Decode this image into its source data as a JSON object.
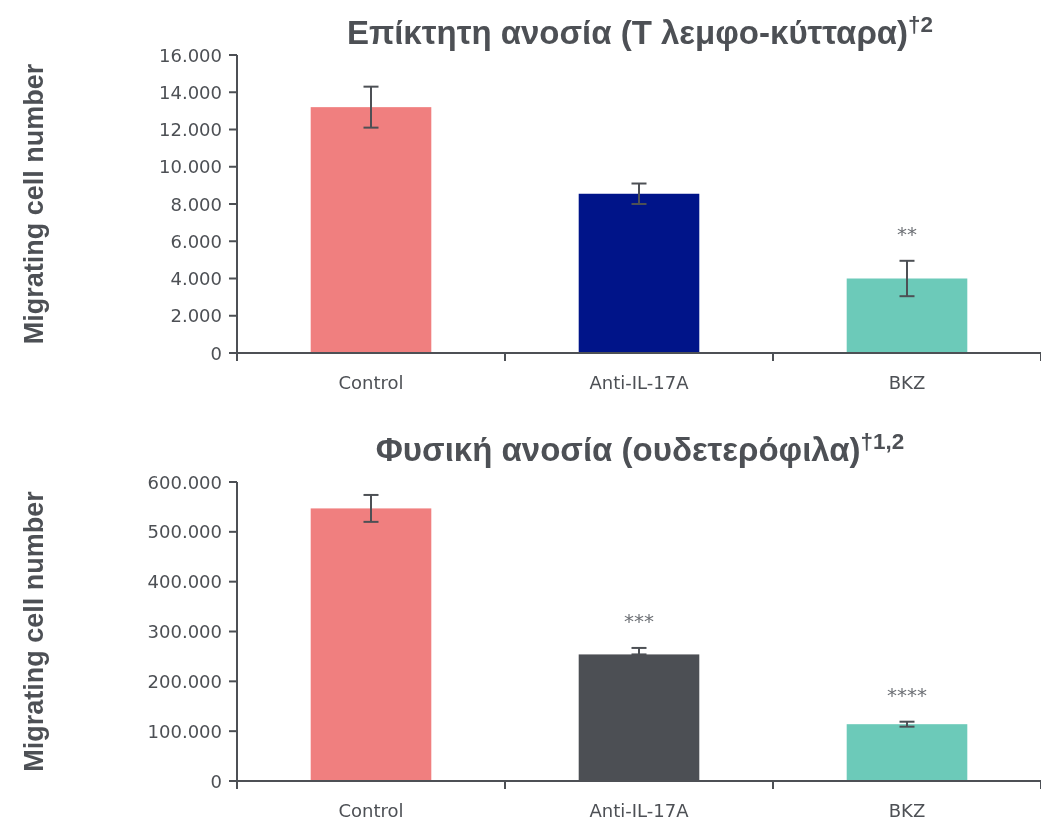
{
  "chart_data": [
    {
      "type": "bar",
      "title": "Επίκτητη ανοσία (Τ λεμφο-κύτταρα)$^{†2}$",
      "ylabel": "Migrating cell number",
      "categories": [
        "Control",
        "Anti-IL-17A",
        "BKZ"
      ],
      "values": [
        13200,
        8550,
        4000
      ],
      "colors": [
        "#f07f7f",
        "#001489",
        "#6ccab9"
      ],
      "errors": [
        1100,
        550,
        950
      ],
      "ylim": [
        0,
        16000
      ],
      "yticks": [
        0,
        {
          "value": 2000,
          "label": "2.000"
        },
        {
          "value": 4000,
          "label": "4.000"
        },
        {
          "value": 6000,
          "label": "6.000"
        },
        {
          "value": 8000,
          "label": "8.000"
        },
        {
          "value": 10000,
          "label": "10.000"
        },
        {
          "value": 12000,
          "label": "12.000"
        },
        {
          "value": 14000,
          "label": "14.000"
        },
        {
          "value": 16000,
          "label": "16.000"
        }
      ],
      "annotations": [
        "**"
      ]
    },
    {
      "type": "bar",
      "title": "Φυσική ανοσία (ουδετερόφιλα)$^{†1,2}$",
      "ylabel": "Migrating cell number",
      "categories": [
        "Control",
        "Anti-IL-17A",
        "BKZ"
      ],
      "values": [
        547000,
        254000,
        114000
      ],
      "colors": [
        "#f07f7f",
        "#4c4f54",
        "#6ccab9"
      ],
      "errors": [
        27000,
        [
          254000,
          267000
        ],
        5000
      ],
      "ylim": [
        0,
        600000
      ],
      "yticks": [
        0,
        {
          "value": 100000,
          "label": "100.000"
        },
        {
          "value": 200000,
          "label": "200.000"
        },
        {
          "value": 300000,
          "label": "300.000"
        },
        {
          "value": 400000,
          "label": "400.000"
        },
        {
          "value": 500000,
          "label": "500.000"
        },
        {
          "value": 600000,
          "label": "600.000"
        }
      ],
      "annotations": [
        "***",
        "****"
      ]
    }
  ]
}
